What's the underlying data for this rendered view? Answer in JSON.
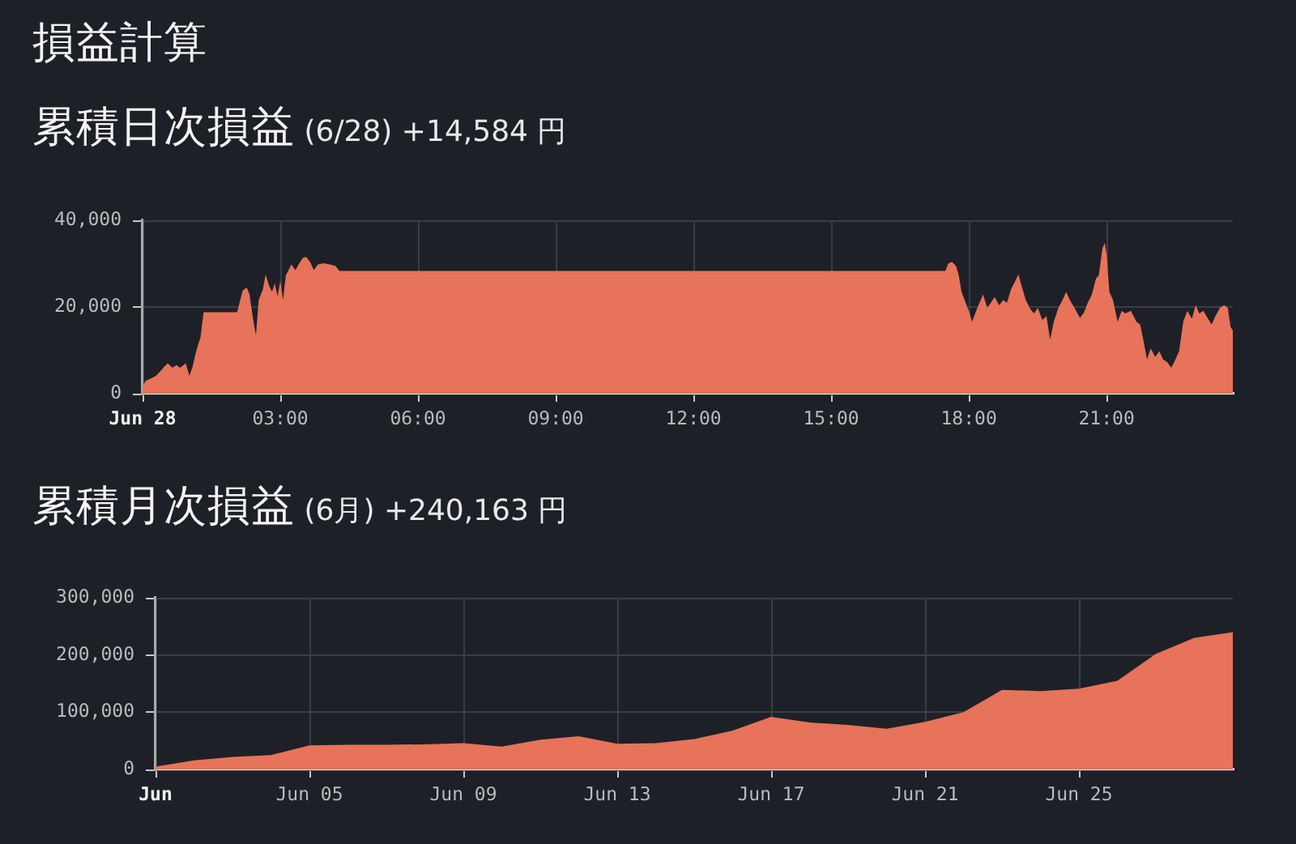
{
  "chart_data": [
    {
      "type": "area",
      "title": "損益計算",
      "subtitle": "累積日次損益 (6/28) +14,584 円",
      "color": "#e7735a",
      "marker": "none",
      "grid": true,
      "x": [
        0,
        0.06,
        0.18,
        0.29,
        0.41,
        0.47,
        0.55,
        0.65,
        0.74,
        0.82,
        0.94,
        1.02,
        1.09,
        1.15,
        1.2,
        1.26,
        1.33,
        2.06,
        2.18,
        2.27,
        2.33,
        2.41,
        2.47,
        2.53,
        2.62,
        2.68,
        2.76,
        2.82,
        2.88,
        2.94,
        3.0,
        3.06,
        3.12,
        3.18,
        3.24,
        3.33,
        3.41,
        3.49,
        3.56,
        3.65,
        3.73,
        3.82,
        3.94,
        4.08,
        4.2,
        4.29,
        17.49,
        17.55,
        17.63,
        17.72,
        17.78,
        17.84,
        17.93,
        18.01,
        18.07,
        18.13,
        18.21,
        18.31,
        18.4,
        18.48,
        18.56,
        18.66,
        18.75,
        18.83,
        18.92,
        19.01,
        19.08,
        19.15,
        19.24,
        19.34,
        19.42,
        19.5,
        19.6,
        19.69,
        19.77,
        19.85,
        19.95,
        20.04,
        20.12,
        20.2,
        20.3,
        20.42,
        20.51,
        20.59,
        20.68,
        20.77,
        20.83,
        20.91,
        20.96,
        21.0,
        21.06,
        21.14,
        21.24,
        21.33,
        21.41,
        21.53,
        21.65,
        21.73,
        21.8,
        21.88,
        21.96,
        22.06,
        22.15,
        22.23,
        22.32,
        22.41,
        22.5,
        22.58,
        22.67,
        22.76,
        22.86,
        22.94,
        23.02,
        23.11,
        23.21,
        23.29,
        23.37,
        23.47,
        23.56,
        23.64,
        23.7,
        23.75
      ],
      "values": [
        1500,
        2900,
        3500,
        4100,
        5400,
        6200,
        7000,
        6000,
        6600,
        6000,
        7000,
        4100,
        6200,
        9000,
        11000,
        12900,
        18800,
        18800,
        23800,
        24500,
        22900,
        17000,
        13500,
        21600,
        24000,
        27500,
        24800,
        23500,
        25400,
        22500,
        26000,
        21600,
        27300,
        28500,
        29800,
        28500,
        30000,
        31300,
        31600,
        30400,
        28500,
        29800,
        30100,
        29800,
        29500,
        28300,
        28300,
        30000,
        30400,
        29500,
        27300,
        23500,
        21000,
        18800,
        16600,
        18300,
        20400,
        22900,
        19800,
        21000,
        22300,
        20400,
        21600,
        21000,
        24100,
        26000,
        27500,
        24800,
        21600,
        19500,
        18500,
        19800,
        17000,
        17900,
        12500,
        16600,
        19800,
        21600,
        23500,
        21600,
        19800,
        17500,
        18800,
        21000,
        22900,
        26600,
        27300,
        33500,
        34800,
        32300,
        23500,
        21600,
        16600,
        19100,
        18500,
        19100,
        16600,
        16000,
        12500,
        7900,
        10400,
        8500,
        9800,
        7900,
        7300,
        6000,
        7900,
        9800,
        16600,
        19100,
        17300,
        20400,
        18500,
        19100,
        17300,
        16000,
        17900,
        19800,
        20400,
        19800,
        15400,
        14600
      ],
      "xlim": [
        0,
        23.75
      ],
      "xticks": [
        {
          "value": 0,
          "label": "Jun 28"
        },
        {
          "value": 3,
          "label": "03:00"
        },
        {
          "value": 6,
          "label": "06:00"
        },
        {
          "value": 9,
          "label": "09:00"
        },
        {
          "value": 12,
          "label": "12:00"
        },
        {
          "value": 15,
          "label": "15:00"
        },
        {
          "value": 18,
          "label": "18:00"
        },
        {
          "value": 21,
          "label": "21:00"
        }
      ],
      "ylim": [
        0,
        40000
      ],
      "yticks": [
        0,
        {
          "value": 20000,
          "label": "20,000"
        },
        {
          "value": 40000,
          "label": "40,000"
        }
      ]
    },
    {
      "type": "area",
      "title": "累積月次損益 (6月) +240,163 円",
      "color": "#e7735a",
      "marker": "none",
      "grid": true,
      "x": [
        "--06-01",
        "--06-02",
        "--06-03",
        "--06-04",
        "--06-05",
        "--06-06",
        "--06-07",
        "--06-08",
        "--06-09",
        "--06-10",
        "--06-11",
        "--06-12",
        "--06-13",
        "--06-14",
        "--06-15",
        "--06-16",
        "--06-17",
        "--06-18",
        "--06-19",
        "--06-20",
        "--06-21",
        "--06-22",
        "--06-23",
        "--06-24",
        "--06-25",
        "--06-26",
        "--06-27",
        "--06-28",
        "--06-29"
      ],
      "values": [
        5000,
        16000,
        22000,
        25000,
        42000,
        43000,
        43000,
        44000,
        46000,
        40000,
        52000,
        58000,
        45000,
        46000,
        53000,
        68000,
        92000,
        82000,
        78000,
        71000,
        83000,
        100000,
        139000,
        137000,
        141000,
        155000,
        202000,
        230000,
        240000
      ],
      "xlim": [
        "--06-01",
        "--06-29"
      ],
      "xticks": [
        {
          "value": "--06-01",
          "label": "Jun"
        },
        {
          "value": "--06-05",
          "label": "Jun 05"
        },
        {
          "value": "--06-09",
          "label": "Jun 09"
        },
        {
          "value": "--06-13",
          "label": "Jun 13"
        },
        {
          "value": "--06-17",
          "label": "Jun 17"
        },
        {
          "value": "--06-21",
          "label": "Jun 21"
        },
        {
          "value": "--06-25",
          "label": "Jun 25"
        }
      ],
      "ylim": [
        0,
        300000
      ],
      "yticks": [
        0,
        {
          "value": 100000,
          "label": "100,000"
        },
        {
          "value": 200000,
          "label": "200,000"
        },
        {
          "value": 300000,
          "label": "300,000"
        }
      ]
    }
  ]
}
